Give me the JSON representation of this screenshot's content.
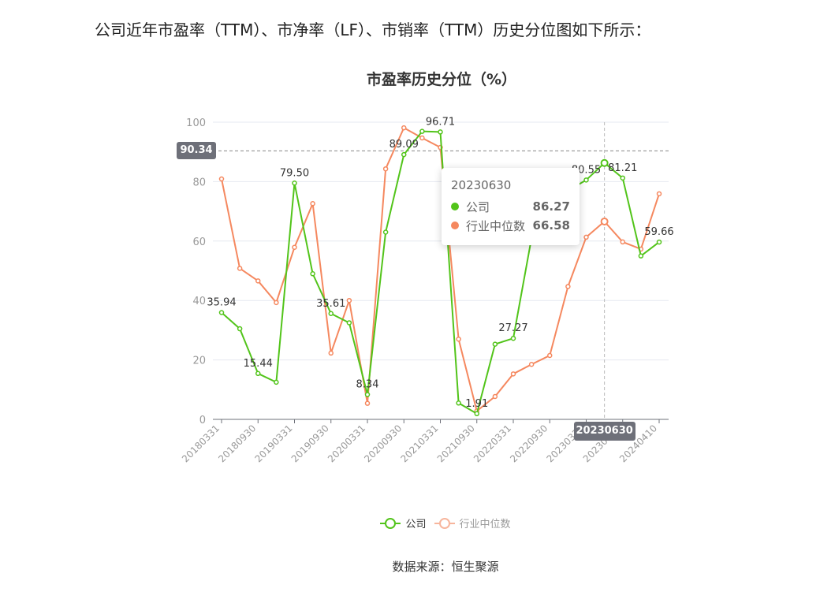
{
  "intro_text": "公司近年市盈率（TTM）、市净率（LF）、市销率（TTM）历史分位图如下所示：",
  "source_text": "数据来源：恒生聚源",
  "chart_data": {
    "type": "line",
    "title": "市盈率历史分位（%）",
    "ylim": [
      0,
      100
    ],
    "y_ticks": [
      "0",
      "20",
      "40",
      "60",
      "80",
      "100"
    ],
    "x_tick_labels": [
      "20180331",
      "20180930",
      "20190331",
      "20190930",
      "20200331",
      "20200930",
      "20210331",
      "20210930",
      "20220331",
      "20220930",
      "20230331",
      "20230930",
      "20240410"
    ],
    "x": [
      "20180331",
      "20180630",
      "20180930",
      "20181231",
      "20190331",
      "20190630",
      "20190930",
      "20191231",
      "20200331",
      "20200630",
      "20200930",
      "20201231",
      "20210331",
      "20210630",
      "20210930",
      "20211231",
      "20220331",
      "20220630",
      "20220930",
      "20221231",
      "20230331",
      "20230630",
      "20230930",
      "20231231",
      "20240410"
    ],
    "series": [
      {
        "name": "公司",
        "color": "#52c41a",
        "values": [
          35.94,
          30.5,
          15.44,
          12.5,
          79.5,
          49.0,
          35.61,
          32.5,
          8.34,
          63.0,
          89.09,
          96.9,
          96.71,
          5.5,
          1.91,
          25.3,
          27.27,
          61.0,
          74.0,
          77.0,
          80.55,
          86.27,
          81.21,
          55.0,
          59.66
        ],
        "labels": {
          "0": "35.94",
          "2": "15.44",
          "4": "79.50",
          "6": "35.61",
          "8": "8.34",
          "10": "89.09",
          "12": "96.71",
          "14": "1.91",
          "16": "27.27",
          "20": "80.55",
          "22": "81.21",
          "24": "59.66"
        }
      },
      {
        "name": "行业中位数",
        "color": "#f5885f",
        "values": [
          80.9,
          50.8,
          46.6,
          39.3,
          57.9,
          72.6,
          22.3,
          40.0,
          5.4,
          84.3,
          98.1,
          94.7,
          91.5,
          27.0,
          2.8,
          7.7,
          15.3,
          18.5,
          21.5,
          44.7,
          61.3,
          66.58,
          59.7,
          57.3,
          75.9
        ],
        "labels": {}
      }
    ],
    "axis_pointer": {
      "y_value": 90.34,
      "y_label": "90.34",
      "x_label": "20230630"
    },
    "tooltip": {
      "date": "20230630",
      "rows": [
        {
          "name": "公司",
          "value": "86.27",
          "color": "#52c41a"
        },
        {
          "name": "行业中位数",
          "value": "66.58",
          "color": "#f5885f"
        }
      ]
    },
    "legend": [
      {
        "name": "公司",
        "color": "#52c41a"
      },
      {
        "name": "行业中位数",
        "color": "#f5885f"
      }
    ],
    "legend_position": "bottom-center",
    "grid": true
  }
}
